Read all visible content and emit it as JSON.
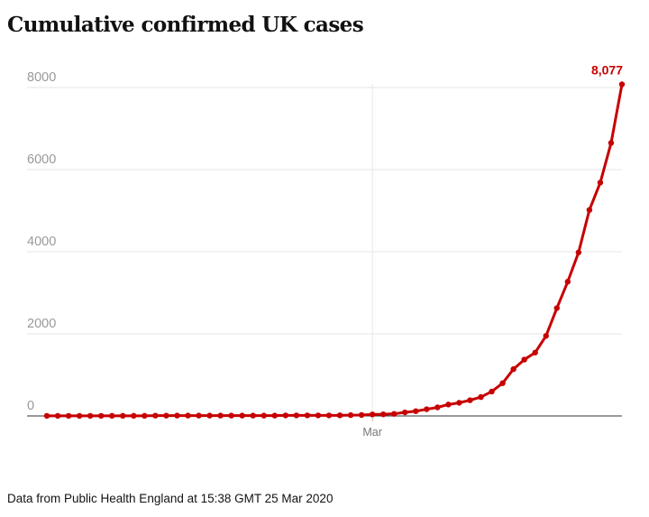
{
  "chart_data": {
    "type": "line",
    "title": "Cumulative confirmed UK cases",
    "xlabel": "",
    "ylabel": "",
    "ylim": [
      0,
      8000
    ],
    "yticks": [
      "0",
      "2000",
      "4000",
      "6000",
      "8000"
    ],
    "xticks": [
      {
        "label": "Mar",
        "date": "2020-03-01"
      }
    ],
    "grid": true,
    "colors": {
      "series": "#c70000",
      "grid": "#e6e6e6",
      "axis": "#333333",
      "tick_text": "#999999",
      "mark_text": "#767676"
    },
    "end_label": "8,077",
    "series": [
      {
        "x": [
          "2020-01-31",
          "2020-02-01",
          "2020-02-02",
          "2020-02-03",
          "2020-02-04",
          "2020-02-05",
          "2020-02-06",
          "2020-02-07",
          "2020-02-08",
          "2020-02-09",
          "2020-02-10",
          "2020-02-11",
          "2020-02-12",
          "2020-02-13",
          "2020-02-14",
          "2020-02-15",
          "2020-02-16",
          "2020-02-17",
          "2020-02-18",
          "2020-02-19",
          "2020-02-20",
          "2020-02-21",
          "2020-02-22",
          "2020-02-23",
          "2020-02-24",
          "2020-02-25",
          "2020-02-26",
          "2020-02-27",
          "2020-02-28",
          "2020-02-29",
          "2020-03-01",
          "2020-03-02",
          "2020-03-03",
          "2020-03-04",
          "2020-03-05",
          "2020-03-06",
          "2020-03-07",
          "2020-03-08",
          "2020-03-09",
          "2020-03-10",
          "2020-03-11",
          "2020-03-12",
          "2020-03-13",
          "2020-03-14",
          "2020-03-15",
          "2020-03-16",
          "2020-03-17",
          "2020-03-18",
          "2020-03-19",
          "2020-03-20",
          "2020-03-21",
          "2020-03-22",
          "2020-03-23",
          "2020-03-24"
        ],
        "values": [
          2,
          2,
          2,
          2,
          2,
          2,
          3,
          3,
          3,
          3,
          8,
          8,
          9,
          9,
          9,
          9,
          9,
          9,
          9,
          9,
          9,
          9,
          13,
          13,
          13,
          13,
          13,
          15,
          20,
          23,
          36,
          40,
          51,
          87,
          116,
          164,
          209,
          278,
          321,
          383,
          460,
          594,
          798,
          1140,
          1372,
          1543,
          1950,
          2626,
          3269,
          3983,
          5018,
          5683,
          6650,
          8077
        ]
      }
    ]
  },
  "footnote": "Data from Public Health England at 15:38 GMT 25 Mar 2020"
}
